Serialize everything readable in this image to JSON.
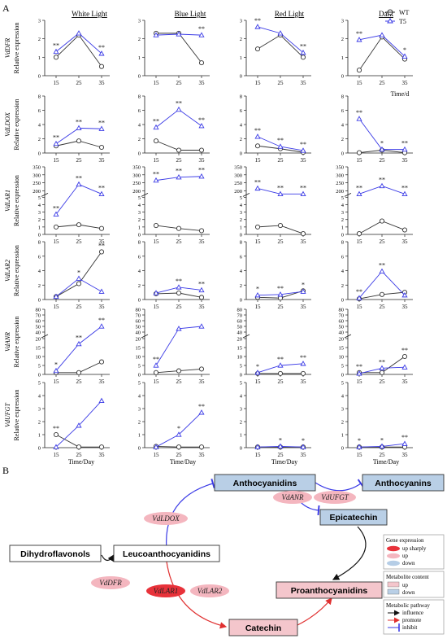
{
  "panel_labels": {
    "a": "A",
    "b": "B"
  },
  "conditions": [
    "White Light",
    "Blue Light",
    "Red Light",
    "Dark"
  ],
  "y_label": "Relative expression",
  "x_label_time_d": "Time/d",
  "x_label_time_day": "Time/Day",
  "legend": {
    "wt": "WT",
    "t5": "T5"
  },
  "colors": {
    "wt": "#333333",
    "t5": "#3a3ae6",
    "red_arrow": "#e03030",
    "blue_arrow": "#3a3ae6",
    "up_sharply": "#e8323a",
    "up": "#f4b6bf",
    "down": "#b5cde6",
    "box_up": "#f4c6cc",
    "box_down": "#b9cfe6"
  },
  "chart_data": [
    {
      "type": "line",
      "gene": "VdDFR",
      "x": [
        15,
        25,
        35
      ],
      "yticks": [
        0,
        1,
        2,
        3
      ],
      "ylim": [
        0,
        3
      ],
      "series": [
        {
          "name": "WT",
          "values": [
            [
              1.0,
              2.2,
              0.5
            ],
            [
              2.3,
              2.3,
              0.7
            ],
            [
              1.45,
              2.2,
              1.0
            ],
            [
              0.3,
              2.1,
              0.9
            ]
          ]
        },
        {
          "name": "T5",
          "values": [
            [
              1.3,
              2.3,
              1.2
            ],
            [
              2.2,
              2.25,
              2.2
            ],
            [
              2.65,
              2.3,
              1.25
            ],
            [
              1.95,
              2.2,
              1.05
            ]
          ]
        }
      ],
      "stars": [
        [
          "**",
          "",
          "**"
        ],
        [
          "",
          "",
          "**"
        ],
        [
          "**",
          "",
          "**"
        ],
        [
          "**",
          "",
          "*"
        ]
      ]
    },
    {
      "type": "line",
      "gene": "VdLDOX",
      "x": [
        15,
        25,
        35
      ],
      "yticks": [
        0,
        2,
        4,
        6,
        8
      ],
      "ylim": [
        0,
        8
      ],
      "series": [
        {
          "name": "WT",
          "values": [
            [
              1.0,
              1.7,
              0.8
            ],
            [
              1.7,
              0.4,
              0.4
            ],
            [
              1.0,
              0.6,
              0.1
            ],
            [
              0.05,
              0.4,
              0.05
            ]
          ]
        },
        {
          "name": "T5",
          "values": [
            [
              1.3,
              3.5,
              3.4
            ],
            [
              3.6,
              6.1,
              3.8
            ],
            [
              2.3,
              0.9,
              0.35
            ],
            [
              4.8,
              0.5,
              0.5
            ]
          ]
        }
      ],
      "stars": [
        [
          "**",
          "**",
          "**"
        ],
        [
          "**",
          "**",
          "**"
        ],
        [
          "**",
          "**",
          "**"
        ],
        [
          "**",
          "*",
          "**"
        ]
      ]
    },
    {
      "type": "line",
      "gene": "VdLAR1",
      "x": [
        15,
        25,
        35
      ],
      "broken": true,
      "yticks_low": [
        0,
        1,
        2,
        3,
        4,
        5
      ],
      "yticks_high": [
        200,
        250,
        300,
        350
      ],
      "series": [
        {
          "name": "WT",
          "values": [
            [
              1.0,
              1.3,
              0.8
            ],
            [
              1.2,
              0.8,
              0.5
            ],
            [
              1.0,
              1.2,
              0.1
            ],
            [
              0.1,
              1.8,
              0.6
            ]
          ]
        },
        {
          "name": "T5",
          "values": [
            [
              2.7,
              240,
              195
            ],
            [
              265,
              285,
              290
            ],
            [
              215,
              180,
              185
            ],
            [
              195,
              230,
              185
            ]
          ]
        }
      ],
      "stars": [
        [
          "**",
          "**",
          "**"
        ],
        [
          "**",
          "**",
          "**"
        ],
        [
          "**",
          "**",
          "**"
        ],
        [
          "**",
          "**",
          "**"
        ]
      ]
    },
    {
      "type": "line",
      "gene": "VdLAR2",
      "x": [
        15,
        25,
        35
      ],
      "yticks": [
        0,
        2,
        4,
        6,
        8
      ],
      "ylim": [
        0,
        8
      ],
      "series": [
        {
          "name": "WT",
          "values": [
            [
              0.4,
              2.2,
              6.6
            ],
            [
              0.8,
              0.9,
              0.3
            ],
            [
              0.3,
              0.2,
              1.2
            ],
            [
              0.1,
              0.7,
              1.0
            ]
          ]
        },
        {
          "name": "T5",
          "values": [
            [
              0.4,
              2.9,
              1.1
            ],
            [
              0.9,
              1.7,
              1.3
            ],
            [
              0.6,
              0.7,
              1.1
            ],
            [
              0.2,
              3.9,
              0.6
            ]
          ]
        }
      ],
      "stars": [
        [
          "",
          "*",
          "**"
        ],
        [
          "",
          "**",
          "**"
        ],
        [
          "*",
          "**",
          "*"
        ],
        [
          "**",
          "**",
          ""
        ]
      ]
    },
    {
      "type": "line",
      "gene": "VdANR",
      "x": [
        15,
        25,
        35
      ],
      "broken": true,
      "yticks_low": [
        0,
        5,
        10,
        15,
        20
      ],
      "yticks_high": [
        40,
        50,
        60,
        70,
        80
      ],
      "series": [
        {
          "name": "WT",
          "values": [
            [
              1.0,
              1.0,
              7.0
            ],
            [
              1.0,
              2.0,
              3.0
            ],
            [
              0.5,
              0.5,
              0.5
            ],
            [
              1.0,
              1.0,
              10.0
            ]
          ]
        },
        {
          "name": "T5",
          "values": [
            [
              2.0,
              17.0,
              50.0
            ],
            [
              5.0,
              46.0,
              50.0
            ],
            [
              1.0,
              5.0,
              6.0
            ],
            [
              0.5,
              3.5,
              4.0
            ]
          ]
        }
      ],
      "stars": [
        [
          "*",
          "**",
          "**"
        ],
        [
          "**",
          "",
          ""
        ],
        [
          "*",
          "**",
          "**"
        ],
        [
          "**",
          "**",
          "**"
        ]
      ]
    },
    {
      "type": "line",
      "gene": "VdUFGT",
      "x": [
        15,
        25,
        35
      ],
      "yticks": [
        0,
        1,
        2,
        3,
        4,
        5
      ],
      "ylim": [
        0,
        5
      ],
      "series": [
        {
          "name": "WT",
          "values": [
            [
              1.0,
              0.05,
              0.05
            ],
            [
              0.1,
              0.05,
              0.05
            ],
            [
              0.05,
              0.05,
              0.05
            ],
            [
              0.05,
              0.05,
              0.05
            ]
          ]
        },
        {
          "name": "T5",
          "values": [
            [
              0.05,
              1.7,
              3.6
            ],
            [
              0.05,
              1.0,
              2.7
            ],
            [
              0.05,
              0.1,
              0.05
            ],
            [
              0.05,
              0.1,
              0.3
            ]
          ]
        }
      ],
      "stars": [
        [
          "**",
          "",
          ""
        ],
        [
          "",
          "*",
          "**"
        ],
        [
          "",
          "*",
          "*"
        ],
        [
          "*",
          "*",
          "**"
        ]
      ]
    }
  ],
  "pathway": {
    "nodes": {
      "dihydroflavonols": "Dihydroflavonols",
      "leucoanthocyanidins": "Leucoanthocyanidins",
      "anthocyanidins": "Anthocyanidins",
      "anthocyanins": "Anthocyanins",
      "epicatechin": "Epicatechin",
      "proanthocyanidins": "Proanthocyanidins",
      "catechin": "Catechin"
    },
    "genes": {
      "dfr": "VdDFR",
      "ldox": "VdLDOX",
      "anr": "VdANR",
      "ufgt": "VdUFGT",
      "lar1": "VdLAR1",
      "lar2": "VdLAR2"
    },
    "legend": {
      "gene_title": "Gene expression",
      "up_sharply": "up sharply",
      "up": "up",
      "down": "down",
      "metabolite_title": "Metabolite content",
      "m_up": "up",
      "m_down": "down",
      "pathway_title": "Metabolic pathway",
      "influence": "influence",
      "promote": "promote",
      "inhibit": "inhibit"
    }
  }
}
